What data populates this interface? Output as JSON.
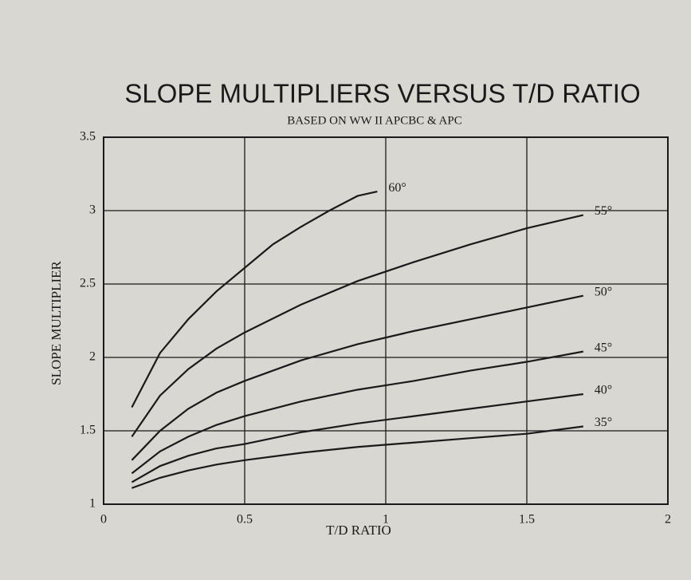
{
  "chart_data": {
    "type": "line",
    "title": "SLOPE MULTIPLIERS VERSUS T/D RATIO",
    "subtitle": "BASED ON WW II APCBC & APC",
    "x_label": "T/D RATIO",
    "y_label": "SLOPE MULTIPLIER",
    "xlim": [
      0,
      2
    ],
    "ylim": [
      1,
      3.5
    ],
    "xticks": [
      0,
      0.5,
      1,
      1.5,
      2
    ],
    "yticks": [
      1,
      1.5,
      2,
      2.5,
      3,
      3.5
    ],
    "grid": true,
    "series": [
      {
        "name": "60°",
        "color": "#1a1a1a",
        "x": [
          0.1,
          0.2,
          0.3,
          0.4,
          0.5,
          0.6,
          0.7,
          0.8,
          0.9,
          0.97
        ],
        "values": [
          1.66,
          2.03,
          2.26,
          2.45,
          2.61,
          2.77,
          2.89,
          3.0,
          3.1,
          3.13
        ]
      },
      {
        "name": "55°",
        "color": "#1a1a1a",
        "x": [
          0.1,
          0.2,
          0.3,
          0.4,
          0.5,
          0.7,
          0.9,
          1.1,
          1.3,
          1.5,
          1.7
        ],
        "values": [
          1.46,
          1.74,
          1.92,
          2.06,
          2.17,
          2.36,
          2.52,
          2.65,
          2.77,
          2.88,
          2.97
        ]
      },
      {
        "name": "50°",
        "color": "#1a1a1a",
        "x": [
          0.1,
          0.2,
          0.3,
          0.4,
          0.5,
          0.7,
          0.9,
          1.1,
          1.3,
          1.5,
          1.7
        ],
        "values": [
          1.3,
          1.5,
          1.65,
          1.76,
          1.84,
          1.98,
          2.09,
          2.18,
          2.26,
          2.34,
          2.42
        ]
      },
      {
        "name": "45°",
        "color": "#1a1a1a",
        "x": [
          0.1,
          0.2,
          0.3,
          0.4,
          0.5,
          0.7,
          0.9,
          1.1,
          1.3,
          1.5,
          1.7
        ],
        "values": [
          1.21,
          1.36,
          1.46,
          1.54,
          1.6,
          1.7,
          1.78,
          1.84,
          1.91,
          1.97,
          2.04
        ]
      },
      {
        "name": "40°",
        "color": "#1a1a1a",
        "x": [
          0.1,
          0.2,
          0.3,
          0.4,
          0.5,
          0.7,
          0.9,
          1.1,
          1.3,
          1.5,
          1.7
        ],
        "values": [
          1.15,
          1.26,
          1.33,
          1.38,
          1.41,
          1.49,
          1.55,
          1.6,
          1.65,
          1.7,
          1.75
        ]
      },
      {
        "name": "35°",
        "color": "#1a1a1a",
        "x": [
          0.1,
          0.2,
          0.3,
          0.4,
          0.5,
          0.7,
          0.9,
          1.1,
          1.3,
          1.5,
          1.7
        ],
        "values": [
          1.11,
          1.18,
          1.23,
          1.27,
          1.3,
          1.35,
          1.39,
          1.42,
          1.45,
          1.48,
          1.53
        ]
      }
    ]
  }
}
